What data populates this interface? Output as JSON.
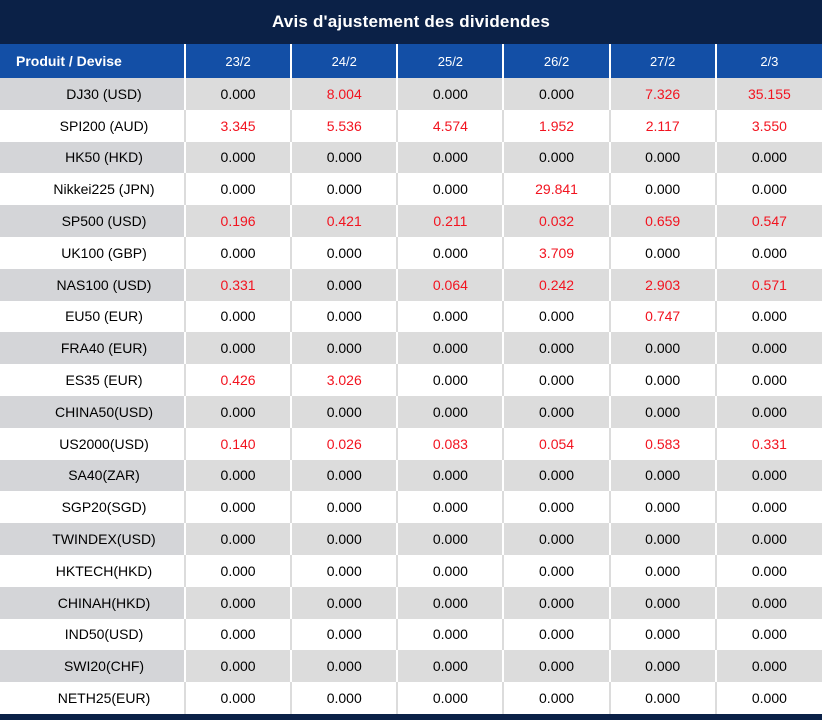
{
  "title": "Avis d'ajustement des dividendes",
  "colors": {
    "title_bar_bg": "#0b2147",
    "header_bg": "#134fa6",
    "row_gray_bg": "#dcdcdc",
    "row_label_gray_bg": "#d4d5d8",
    "row_white_bg": "#ffffff",
    "value_negative_red": "#f2131f",
    "value_black": "#000000",
    "header_text": "#ffffff"
  },
  "table": {
    "header": {
      "product_label": "Produit / Devise",
      "dates": [
        "23/2",
        "24/2",
        "25/2",
        "26/2",
        "27/2",
        "2/3"
      ]
    },
    "rows": [
      {
        "product": "DJ30 (USD)",
        "values": [
          {
            "text": "0.000",
            "red": false
          },
          {
            "text": "8.004",
            "red": true
          },
          {
            "text": "0.000",
            "red": false
          },
          {
            "text": "0.000",
            "red": false
          },
          {
            "text": "7.326",
            "red": true
          },
          {
            "text": "35.155",
            "red": true
          }
        ]
      },
      {
        "product": "SPI200 (AUD)",
        "values": [
          {
            "text": "3.345",
            "red": true
          },
          {
            "text": "5.536",
            "red": true
          },
          {
            "text": "4.574",
            "red": true
          },
          {
            "text": "1.952",
            "red": true
          },
          {
            "text": "2.117",
            "red": true
          },
          {
            "text": "3.550",
            "red": true
          }
        ]
      },
      {
        "product": "HK50 (HKD)",
        "values": [
          {
            "text": "0.000",
            "red": false
          },
          {
            "text": "0.000",
            "red": false
          },
          {
            "text": "0.000",
            "red": false
          },
          {
            "text": "0.000",
            "red": false
          },
          {
            "text": "0.000",
            "red": false
          },
          {
            "text": "0.000",
            "red": false
          }
        ]
      },
      {
        "product": "Nikkei225 (JPN)",
        "values": [
          {
            "text": "0.000",
            "red": false
          },
          {
            "text": "0.000",
            "red": false
          },
          {
            "text": "0.000",
            "red": false
          },
          {
            "text": "29.841",
            "red": true
          },
          {
            "text": "0.000",
            "red": false
          },
          {
            "text": "0.000",
            "red": false
          }
        ]
      },
      {
        "product": "SP500 (USD)",
        "values": [
          {
            "text": "0.196",
            "red": true
          },
          {
            "text": "0.421",
            "red": true
          },
          {
            "text": "0.211",
            "red": true
          },
          {
            "text": "0.032",
            "red": true
          },
          {
            "text": "0.659",
            "red": true
          },
          {
            "text": "0.547",
            "red": true
          }
        ]
      },
      {
        "product": "UK100 (GBP)",
        "values": [
          {
            "text": "0.000",
            "red": false
          },
          {
            "text": "0.000",
            "red": false
          },
          {
            "text": "0.000",
            "red": false
          },
          {
            "text": "3.709",
            "red": true
          },
          {
            "text": "0.000",
            "red": false
          },
          {
            "text": "0.000",
            "red": false
          }
        ]
      },
      {
        "product": "NAS100 (USD)",
        "values": [
          {
            "text": "0.331",
            "red": true
          },
          {
            "text": "0.000",
            "red": false
          },
          {
            "text": "0.064",
            "red": true
          },
          {
            "text": "0.242",
            "red": true
          },
          {
            "text": "2.903",
            "red": true
          },
          {
            "text": "0.571",
            "red": true
          }
        ]
      },
      {
        "product": "EU50 (EUR)",
        "values": [
          {
            "text": "0.000",
            "red": false
          },
          {
            "text": "0.000",
            "red": false
          },
          {
            "text": "0.000",
            "red": false
          },
          {
            "text": "0.000",
            "red": false
          },
          {
            "text": "0.747",
            "red": true
          },
          {
            "text": "0.000",
            "red": false
          }
        ]
      },
      {
        "product": "FRA40 (EUR)",
        "values": [
          {
            "text": "0.000",
            "red": false
          },
          {
            "text": "0.000",
            "red": false
          },
          {
            "text": "0.000",
            "red": false
          },
          {
            "text": "0.000",
            "red": false
          },
          {
            "text": "0.000",
            "red": false
          },
          {
            "text": "0.000",
            "red": false
          }
        ]
      },
      {
        "product": "ES35 (EUR)",
        "values": [
          {
            "text": "0.426",
            "red": true
          },
          {
            "text": "3.026",
            "red": true
          },
          {
            "text": "0.000",
            "red": false
          },
          {
            "text": "0.000",
            "red": false
          },
          {
            "text": "0.000",
            "red": false
          },
          {
            "text": "0.000",
            "red": false
          }
        ]
      },
      {
        "product": "CHINA50(USD)",
        "values": [
          {
            "text": "0.000",
            "red": false
          },
          {
            "text": "0.000",
            "red": false
          },
          {
            "text": "0.000",
            "red": false
          },
          {
            "text": "0.000",
            "red": false
          },
          {
            "text": "0.000",
            "red": false
          },
          {
            "text": "0.000",
            "red": false
          }
        ]
      },
      {
        "product": "US2000(USD)",
        "values": [
          {
            "text": "0.140",
            "red": true
          },
          {
            "text": "0.026",
            "red": true
          },
          {
            "text": "0.083",
            "red": true
          },
          {
            "text": "0.054",
            "red": true
          },
          {
            "text": "0.583",
            "red": true
          },
          {
            "text": "0.331",
            "red": true
          }
        ]
      },
      {
        "product": "SA40(ZAR)",
        "values": [
          {
            "text": "0.000",
            "red": false
          },
          {
            "text": "0.000",
            "red": false
          },
          {
            "text": "0.000",
            "red": false
          },
          {
            "text": "0.000",
            "red": false
          },
          {
            "text": "0.000",
            "red": false
          },
          {
            "text": "0.000",
            "red": false
          }
        ]
      },
      {
        "product": "SGP20(SGD)",
        "values": [
          {
            "text": "0.000",
            "red": false
          },
          {
            "text": "0.000",
            "red": false
          },
          {
            "text": "0.000",
            "red": false
          },
          {
            "text": "0.000",
            "red": false
          },
          {
            "text": "0.000",
            "red": false
          },
          {
            "text": "0.000",
            "red": false
          }
        ]
      },
      {
        "product": "TWINDEX(USD)",
        "values": [
          {
            "text": "0.000",
            "red": false
          },
          {
            "text": "0.000",
            "red": false
          },
          {
            "text": "0.000",
            "red": false
          },
          {
            "text": "0.000",
            "red": false
          },
          {
            "text": "0.000",
            "red": false
          },
          {
            "text": "0.000",
            "red": false
          }
        ]
      },
      {
        "product": "HKTECH(HKD)",
        "values": [
          {
            "text": "0.000",
            "red": false
          },
          {
            "text": "0.000",
            "red": false
          },
          {
            "text": "0.000",
            "red": false
          },
          {
            "text": "0.000",
            "red": false
          },
          {
            "text": "0.000",
            "red": false
          },
          {
            "text": "0.000",
            "red": false
          }
        ]
      },
      {
        "product": "CHINAH(HKD)",
        "values": [
          {
            "text": "0.000",
            "red": false
          },
          {
            "text": "0.000",
            "red": false
          },
          {
            "text": "0.000",
            "red": false
          },
          {
            "text": "0.000",
            "red": false
          },
          {
            "text": "0.000",
            "red": false
          },
          {
            "text": "0.000",
            "red": false
          }
        ]
      },
      {
        "product": "IND50(USD)",
        "values": [
          {
            "text": "0.000",
            "red": false
          },
          {
            "text": "0.000",
            "red": false
          },
          {
            "text": "0.000",
            "red": false
          },
          {
            "text": "0.000",
            "red": false
          },
          {
            "text": "0.000",
            "red": false
          },
          {
            "text": "0.000",
            "red": false
          }
        ]
      },
      {
        "product": "SWI20(CHF)",
        "values": [
          {
            "text": "0.000",
            "red": false
          },
          {
            "text": "0.000",
            "red": false
          },
          {
            "text": "0.000",
            "red": false
          },
          {
            "text": "0.000",
            "red": false
          },
          {
            "text": "0.000",
            "red": false
          },
          {
            "text": "0.000",
            "red": false
          }
        ]
      },
      {
        "product": "NETH25(EUR)",
        "values": [
          {
            "text": "0.000",
            "red": false
          },
          {
            "text": "0.000",
            "red": false
          },
          {
            "text": "0.000",
            "red": false
          },
          {
            "text": "0.000",
            "red": false
          },
          {
            "text": "0.000",
            "red": false
          },
          {
            "text": "0.000",
            "red": false
          }
        ]
      }
    ]
  }
}
